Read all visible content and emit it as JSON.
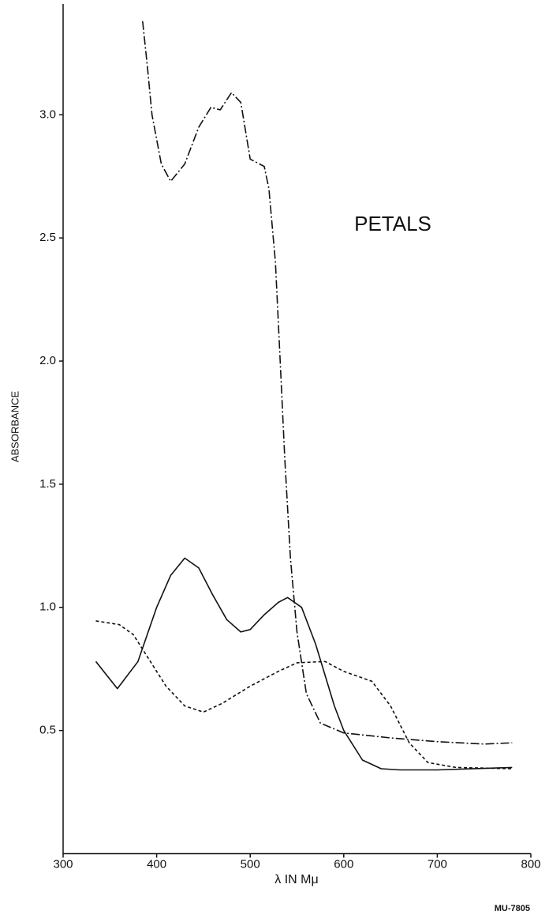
{
  "chart_data": {
    "type": "line",
    "annotations": [
      "PETALS",
      "MU-7805"
    ],
    "xlabel": "λ IN Mμ",
    "ylabel": "ABSORBANCE",
    "xlim": [
      300,
      800
    ],
    "xticks": [
      300,
      400,
      500,
      600,
      700,
      800
    ],
    "ylim": [
      0,
      3.45
    ],
    "yticks": [
      0.5,
      {
        "value": 1,
        "label": "1.0"
      },
      1.5,
      {
        "value": 2,
        "label": "2.0"
      },
      2.5,
      {
        "value": 3,
        "label": "3.0"
      }
    ],
    "grid": false,
    "series": [
      {
        "color": "#111",
        "dash": "solid",
        "x": [
          335,
          358,
          380,
          400,
          415,
          430,
          445,
          460,
          475,
          490,
          500,
          515,
          530,
          540,
          555,
          570,
          590,
          600,
          620,
          640,
          660,
          700,
          780
        ],
        "values": [
          0.78,
          0.67,
          0.78,
          1.0,
          1.13,
          1.2,
          1.16,
          1.05,
          0.95,
          0.9,
          0.91,
          0.97,
          1.02,
          1.04,
          1.0,
          0.85,
          0.6,
          0.5,
          0.38,
          0.345,
          0.34,
          0.34,
          0.35
        ]
      },
      {
        "color": "#111",
        "dash": "dashed",
        "x": [
          335,
          360,
          375,
          390,
          410,
          430,
          450,
          470,
          500,
          530,
          550,
          580,
          600,
          630,
          650,
          670,
          690,
          720,
          780
        ],
        "values": [
          0.945,
          0.93,
          0.89,
          0.8,
          0.68,
          0.6,
          0.575,
          0.61,
          0.68,
          0.74,
          0.775,
          0.78,
          0.74,
          0.7,
          0.6,
          0.45,
          0.37,
          0.35,
          0.345
        ]
      },
      {
        "color": "#111",
        "dash": "dashdot",
        "x": [
          385,
          390,
          395,
          405,
          415,
          430,
          445,
          458,
          468,
          480,
          490,
          500,
          515,
          520,
          527,
          532,
          537,
          543,
          550,
          560,
          575,
          600,
          650,
          700,
          750,
          780
        ],
        "values": [
          3.38,
          3.2,
          3.0,
          2.8,
          2.73,
          2.8,
          2.95,
          3.03,
          3.02,
          3.09,
          3.05,
          2.82,
          2.79,
          2.7,
          2.4,
          2.0,
          1.6,
          1.2,
          0.9,
          0.65,
          0.53,
          0.49,
          0.47,
          0.455,
          0.445,
          0.45
        ]
      }
    ]
  }
}
